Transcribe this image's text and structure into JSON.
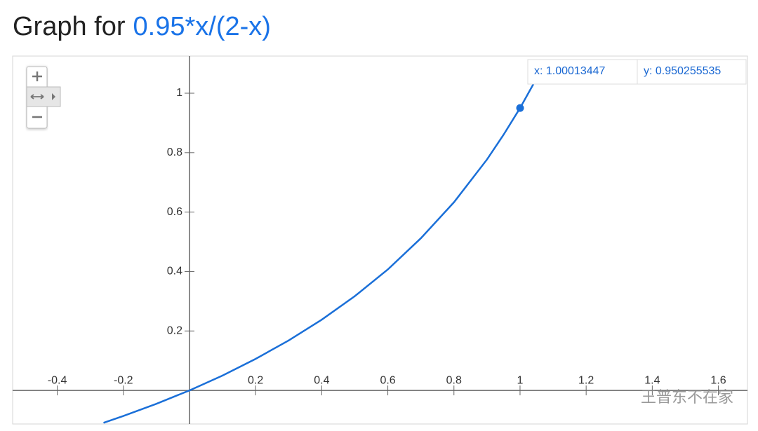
{
  "chart_data": {
    "type": "line",
    "title": "Graph for",
    "expression": "0.95*x/(2-x)",
    "x": [
      -0.26,
      -0.2,
      -0.1,
      0,
      0.1,
      0.2,
      0.3,
      0.4,
      0.5,
      0.6,
      0.7,
      0.8,
      0.9,
      0.95,
      1.0,
      1.05
    ],
    "values": [
      -0.109,
      -0.086,
      -0.045,
      0,
      0.05,
      0.106,
      0.168,
      0.238,
      0.317,
      0.407,
      0.512,
      0.633,
      0.777,
      0.86,
      0.95,
      1.05
    ],
    "color": "#1a6fd8",
    "xlim": [
      -0.535,
      1.688
    ],
    "ylim": [
      -0.113,
      1.125
    ],
    "xticks": [
      -0.4,
      -0.2,
      0.2,
      0.4,
      0.6,
      0.8,
      1,
      1.2,
      1.4,
      1.6
    ],
    "yticks": [
      0.2,
      0.4,
      0.6,
      0.8,
      1
    ],
    "marker": {
      "x": 1.00013447,
      "y": 0.950255535,
      "x_label": "x: 1.00013447",
      "y_label": "y: 0.950255535"
    },
    "watermark": "王普东不在家"
  }
}
